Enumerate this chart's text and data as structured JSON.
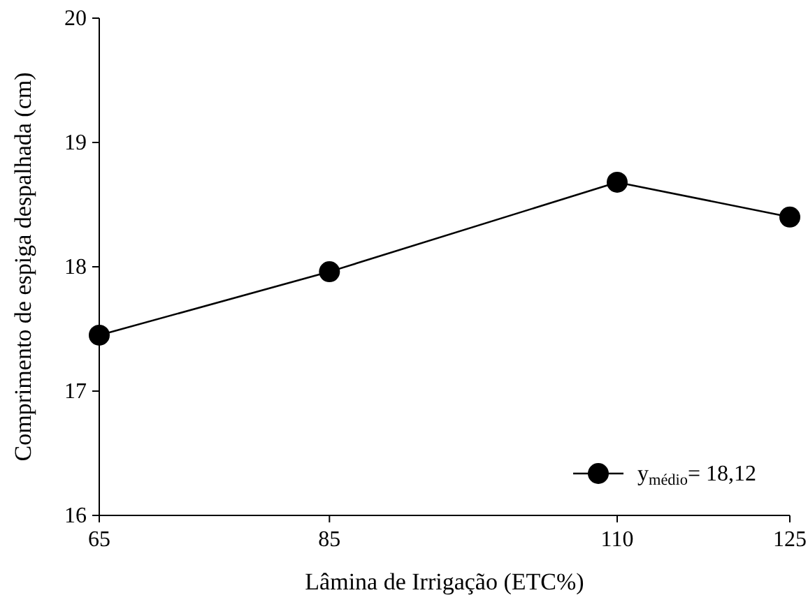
{
  "chart_data": {
    "type": "line",
    "xlabel": "Lâmina de Irrigação (ETC%)",
    "ylabel": "Comprimento de espiga despalhada (cm)",
    "x": [
      65,
      85,
      110,
      125
    ],
    "series": [
      {
        "name": "y$_{médio}$= 18,12",
        "color": "#000000",
        "values": [
          17.45,
          17.96,
          18.68,
          18.4
        ]
      }
    ],
    "xlim": [
      65,
      125
    ],
    "xticks": [
      65,
      85,
      110,
      125
    ],
    "ylim": [
      16,
      20
    ],
    "yticks": [
      16,
      17,
      18,
      19,
      20
    ],
    "marker": "circle",
    "line_style": "solid",
    "legend": "bottom right",
    "grid": false
  }
}
